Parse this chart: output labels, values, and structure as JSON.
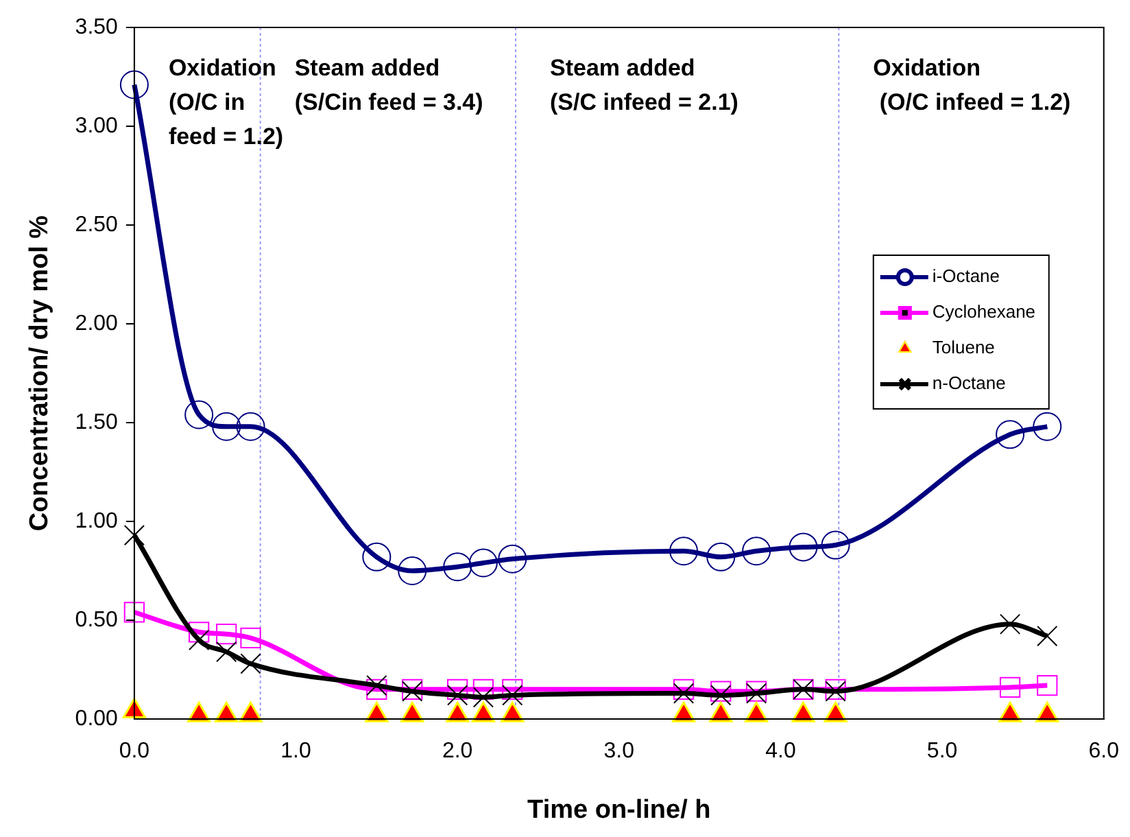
{
  "chart_data": {
    "type": "line",
    "xlabel": "Time on-line/ h",
    "ylabel": "Concentration/ dry mol %",
    "x": [
      0,
      0.4,
      0.57,
      0.72,
      1.5,
      1.72,
      2.0,
      2.16,
      2.34,
      3.4,
      3.63,
      3.85,
      4.14,
      4.34,
      5.42,
      5.65
    ],
    "series": [
      {
        "name": "i-Octane",
        "color": "#000080",
        "marker": "circle",
        "values": [
          3.21,
          1.54,
          1.48,
          1.48,
          0.82,
          0.75,
          0.77,
          0.79,
          0.81,
          0.85,
          0.82,
          0.85,
          0.87,
          0.88,
          1.44,
          1.48
        ]
      },
      {
        "name": "Cyclohexane",
        "color": "#ff00ff",
        "marker": "square",
        "values": [
          0.54,
          0.44,
          0.43,
          0.41,
          0.15,
          0.15,
          0.15,
          0.15,
          0.15,
          0.15,
          0.14,
          0.14,
          0.15,
          0.15,
          0.16,
          0.17
        ]
      },
      {
        "name": "Toluene",
        "type": "scatter",
        "color": "#ff0000",
        "marker": "triangle",
        "values": [
          0.04,
          0.02,
          0.02,
          0.02,
          0.02,
          0.02,
          0.02,
          0.02,
          0.02,
          0.02,
          0.02,
          0.02,
          0.02,
          0.02,
          0.02,
          0.02
        ]
      },
      {
        "name": "n-Octane",
        "color": "#000000",
        "marker": "cross",
        "values": [
          0.93,
          0.4,
          0.34,
          0.28,
          0.17,
          0.14,
          0.12,
          0.11,
          0.12,
          0.13,
          0.12,
          0.13,
          0.15,
          0.14,
          0.48,
          0.42
        ]
      }
    ],
    "xlim": [
      0,
      6
    ],
    "xticks": [
      {
        "value": 0,
        "label": "0.0"
      },
      {
        "value": 1,
        "label": "1.0"
      },
      {
        "value": 2,
        "label": "2.0"
      },
      {
        "value": 3,
        "label": "3.0"
      },
      {
        "value": 4,
        "label": "4.0"
      },
      {
        "value": 5,
        "label": "5.0"
      },
      {
        "value": 6,
        "label": "6.0"
      }
    ],
    "ylim": [
      0,
      3.5
    ],
    "yticks": [
      {
        "value": 0,
        "label": "0.00"
      },
      {
        "value": 0.5,
        "label": "0.50"
      },
      {
        "value": 1,
        "label": "1.00"
      },
      {
        "value": 1.5,
        "label": "1.50"
      },
      {
        "value": 2,
        "label": "2.00"
      },
      {
        "value": 2.5,
        "label": "2.50"
      },
      {
        "value": 3,
        "label": "3.00"
      },
      {
        "value": 3.5,
        "label": "3.50"
      }
    ],
    "ref_lines": [
      {
        "axis": "x",
        "value": 0.78,
        "color": "#9999ff",
        "line_style": "dotted"
      },
      {
        "axis": "x",
        "value": 2.36,
        "color": "#9999ff",
        "line_style": "dotted"
      },
      {
        "axis": "x",
        "value": 4.36,
        "color": "#9999ff",
        "line_style": "dotted"
      }
    ],
    "annotations": [
      "Oxidation\n(O/C in\nfeed = 1.2)",
      "Steam added\n(S/Cin feed = 3.4)",
      "Steam added\n(S/C infeed = 2.1)",
      "Oxidation\n (O/C infeed = 1.2)"
    ],
    "grid": false,
    "legend": "right"
  }
}
